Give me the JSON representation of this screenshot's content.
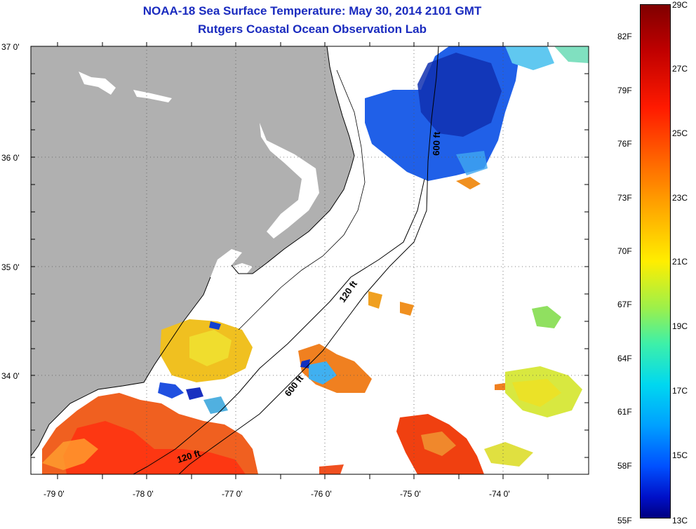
{
  "title": {
    "line1": "NOAA-18 Sea Surface Temperature:  May 30, 2014 2101 GMT",
    "line2": "Rutgers Coastal Ocean Observation Lab"
  },
  "map": {
    "latitude_labels": [
      "37 0'",
      "36 0'",
      "35 0'",
      "34 0'"
    ],
    "longitude_labels": [
      "-79 0'",
      "-78 0'",
      "-77 0'",
      "-76 0'",
      "-75 0'",
      "-74 0'"
    ],
    "isobath_labels": [
      "600 ft",
      "120 ft",
      "600 ft",
      "120 ft"
    ],
    "colors": {
      "land": "#b0b0b0",
      "no_data": "#ffffff"
    }
  },
  "colorbar": {
    "celsius_labels": [
      "29C",
      "27C",
      "25C",
      "23C",
      "21C",
      "19C",
      "17C",
      "15C",
      "13C"
    ],
    "fahrenheit_labels": [
      "82F",
      "79F",
      "76F",
      "73F",
      "70F",
      "67F",
      "64F",
      "61F",
      "58F",
      "55F"
    ],
    "colors": [
      "#800000",
      "#ff1a00",
      "#ffaa00",
      "#ffee00",
      "#3ef0a8",
      "#00d8f0",
      "#0050ff",
      "#000080"
    ]
  }
}
